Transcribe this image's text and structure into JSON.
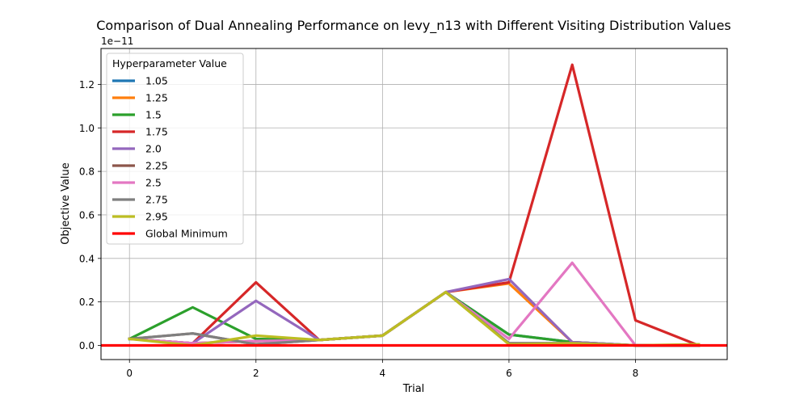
{
  "chart_data": {
    "type": "line",
    "title": "Comparison of Dual Annealing Performance on levy_n13 with Different Visiting Distribution Values",
    "xlabel": "Trial",
    "ylabel": "Objective Value",
    "y_offset_label": "1e−11",
    "x": [
      0,
      1,
      2,
      3,
      4,
      5,
      6,
      7,
      8,
      9
    ],
    "xlim": [
      -0.45,
      9.45
    ],
    "ylim": [
      -0.065,
      1.365
    ],
    "x_ticks": [
      0,
      2,
      4,
      6,
      8
    ],
    "x_tick_labels": [
      "0",
      "2",
      "4",
      "6",
      "8"
    ],
    "y_ticks": [
      0.0,
      0.2,
      0.4,
      0.6,
      0.8,
      1.0,
      1.2
    ],
    "y_tick_labels": [
      "0.0",
      "0.2",
      "0.4",
      "0.6",
      "0.8",
      "1.0",
      "1.2"
    ],
    "grid": true,
    "legend_title": "Hyperparameter Value",
    "legend_position": "top-left",
    "series": [
      {
        "name": "1.05",
        "color": "#1f77b4",
        "values": [
          0.03,
          0.01,
          0.02,
          0.025,
          0.045,
          0.245,
          0.05,
          0.015,
          0.0,
          0.0
        ]
      },
      {
        "name": "1.25",
        "color": "#ff7f0e",
        "values": [
          0.03,
          0.01,
          0.02,
          0.025,
          0.045,
          0.245,
          0.285,
          0.015,
          0.0,
          0.0
        ]
      },
      {
        "name": "1.5",
        "color": "#2ca02c",
        "values": [
          0.03,
          0.175,
          0.03,
          0.025,
          0.045,
          0.245,
          0.05,
          0.015,
          0.0,
          0.0
        ]
      },
      {
        "name": "1.75",
        "color": "#d62728",
        "values": [
          0.03,
          0.01,
          0.29,
          0.025,
          0.045,
          0.245,
          0.29,
          1.29,
          0.115,
          0.0
        ]
      },
      {
        "name": "2.0",
        "color": "#9467bd",
        "values": [
          0.03,
          0.01,
          0.205,
          0.025,
          0.045,
          0.245,
          0.305,
          0.015,
          0.0,
          0.0
        ]
      },
      {
        "name": "2.25",
        "color": "#8c564b",
        "values": [
          0.03,
          0.055,
          0.005,
          0.025,
          0.045,
          0.245,
          0.01,
          0.01,
          0.0,
          0.0
        ]
      },
      {
        "name": "2.5",
        "color": "#e377c2",
        "values": [
          0.03,
          0.01,
          0.02,
          0.025,
          0.045,
          0.245,
          0.03,
          0.38,
          0.0,
          0.0
        ]
      },
      {
        "name": "2.75",
        "color": "#7f7f7f",
        "values": [
          0.03,
          0.055,
          0.005,
          0.025,
          0.045,
          0.245,
          0.01,
          0.01,
          0.0,
          0.0
        ]
      },
      {
        "name": "2.95",
        "color": "#bcbd22",
        "values": [
          0.03,
          0.0,
          0.045,
          0.025,
          0.045,
          0.245,
          0.005,
          0.01,
          0.0,
          0.005
        ]
      }
    ],
    "reference_line": {
      "name": "Global Minimum",
      "color": "#ff0000",
      "value": 0.0
    }
  }
}
